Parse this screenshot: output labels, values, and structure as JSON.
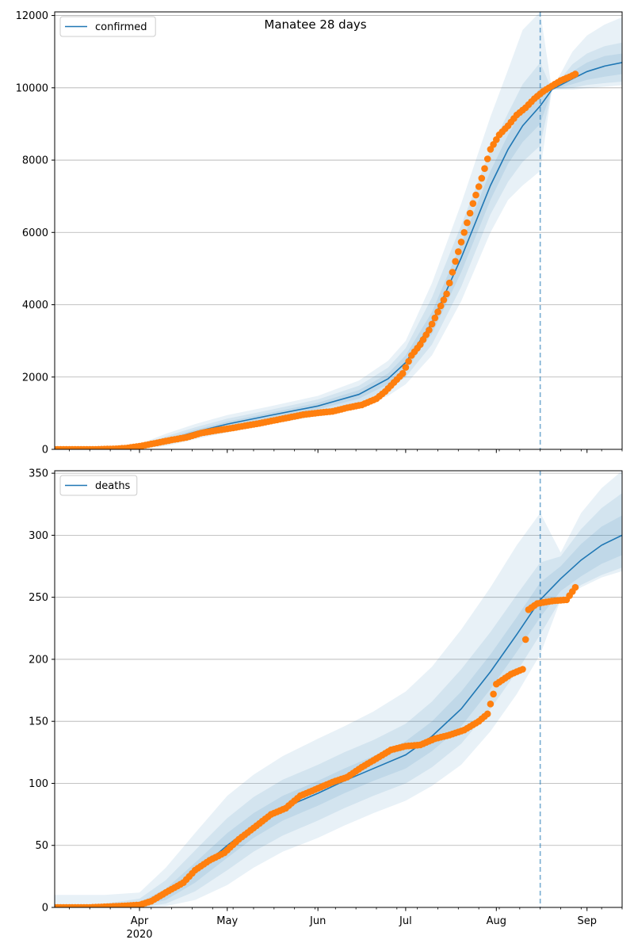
{
  "title": "Manatee 28 days",
  "colors": {
    "line": "#1f77b4",
    "points": "#ff7f0e",
    "band": "#1f77b4",
    "grid": "#b0b0b0",
    "vline": "#1f77b4"
  },
  "x_axis": {
    "major_ticks": [
      {
        "date": "2020-04-01",
        "label": "Apr",
        "sublabel": "2020"
      },
      {
        "date": "2020-05-01",
        "label": "May",
        "sublabel": ""
      },
      {
        "date": "2020-06-01",
        "label": "Jun",
        "sublabel": ""
      },
      {
        "date": "2020-07-01",
        "label": "Jul",
        "sublabel": ""
      },
      {
        "date": "2020-08-01",
        "label": "Aug",
        "sublabel": ""
      },
      {
        "date": "2020-09-01",
        "label": "Sep",
        "sublabel": ""
      }
    ],
    "xlim": [
      "2020-03-03",
      "2020-09-13"
    ],
    "minor_ticks": "weekly"
  },
  "chart_data": [
    {
      "type": "line",
      "legend": "confirmed",
      "legend_position": "top-left",
      "ylim": [
        0,
        12100
      ],
      "yticks": [
        0,
        2000,
        4000,
        6000,
        8000,
        10000,
        12000
      ],
      "grid": "horizontal",
      "forecast_start": "2020-08-16",
      "model": {
        "dates": [
          "2020-03-03",
          "2020-03-20",
          "2020-04-01",
          "2020-04-10",
          "2020-04-20",
          "2020-05-01",
          "2020-05-15",
          "2020-06-01",
          "2020-06-15",
          "2020-06-25",
          "2020-07-01",
          "2020-07-10",
          "2020-07-20",
          "2020-07-30",
          "2020-08-05",
          "2020-08-10",
          "2020-08-16",
          "2020-08-20",
          "2020-08-27",
          "2020-09-01",
          "2020-09-07",
          "2020-09-13"
        ],
        "mean": [
          0,
          5,
          60,
          250,
          480,
          700,
          930,
          1200,
          1520,
          1950,
          2400,
          3500,
          5300,
          7300,
          8300,
          8950,
          9500,
          9950,
          10250,
          10450,
          10600,
          10700
        ],
        "p25": [
          0,
          3,
          40,
          200,
          420,
          630,
          860,
          1110,
          1400,
          1800,
          2200,
          3200,
          4900,
          6900,
          7900,
          8500,
          9000,
          9950,
          10100,
          10220,
          10310,
          10380
        ],
        "p75": [
          0,
          8,
          80,
          300,
          540,
          770,
          1000,
          1290,
          1640,
          2100,
          2600,
          3800,
          5700,
          7700,
          8700,
          9400,
          10000,
          9950,
          10450,
          10700,
          10880,
          10950
        ],
        "p10": [
          0,
          2,
          25,
          150,
          360,
          560,
          790,
          1030,
          1300,
          1650,
          2000,
          2900,
          4500,
          6500,
          7400,
          7950,
          8400,
          9950,
          10000,
          10080,
          10130,
          10170
        ],
        "p90": [
          0,
          15,
          110,
          360,
          610,
          850,
          1080,
          1380,
          1760,
          2260,
          2800,
          4200,
          6200,
          8300,
          9300,
          10100,
          10700,
          9950,
          10650,
          10950,
          11150,
          11250
        ],
        "p025": [
          0,
          1,
          10,
          90,
          280,
          470,
          690,
          920,
          1170,
          1480,
          1800,
          2600,
          4100,
          6000,
          6900,
          7300,
          7700,
          9950,
          9950,
          9990,
          10030,
          10070
        ],
        "p975": [
          0,
          25,
          150,
          430,
          700,
          950,
          1180,
          1480,
          1900,
          2450,
          3000,
          4600,
          6800,
          9200,
          10500,
          11600,
          12100,
          9950,
          11000,
          11450,
          11750,
          11950
        ]
      },
      "observed": {
        "dates": [
          "2020-03-03",
          "2020-03-10",
          "2020-03-17",
          "2020-03-24",
          "2020-03-28",
          "2020-04-02",
          "2020-04-07",
          "2020-04-12",
          "2020-04-17",
          "2020-04-22",
          "2020-04-27",
          "2020-05-02",
          "2020-05-07",
          "2020-05-12",
          "2020-05-17",
          "2020-05-22",
          "2020-05-27",
          "2020-06-01",
          "2020-06-06",
          "2020-06-11",
          "2020-06-16",
          "2020-06-21",
          "2020-06-24",
          "2020-06-27",
          "2020-06-30",
          "2020-07-03",
          "2020-07-06",
          "2020-07-09",
          "2020-07-12",
          "2020-07-15",
          "2020-07-18",
          "2020-07-21",
          "2020-07-24",
          "2020-07-27",
          "2020-07-30",
          "2020-08-02",
          "2020-08-05",
          "2020-08-08",
          "2020-08-11",
          "2020-08-14",
          "2020-08-17",
          "2020-08-20",
          "2020-08-23",
          "2020-08-26",
          "2020-08-28"
        ],
        "values": [
          0,
          0,
          0,
          15,
          40,
          100,
          180,
          260,
          330,
          450,
          520,
          580,
          650,
          720,
          800,
          880,
          960,
          1010,
          1050,
          1150,
          1230,
          1400,
          1600,
          1850,
          2100,
          2600,
          2900,
          3300,
          3800,
          4300,
          5200,
          6000,
          6800,
          7500,
          8300,
          8700,
          8950,
          9250,
          9450,
          9700,
          9900,
          10050,
          10200,
          10300,
          10380
        ]
      }
    },
    {
      "type": "line",
      "legend": "deaths",
      "legend_position": "top-left",
      "ylim": [
        0,
        352
      ],
      "yticks": [
        0,
        50,
        100,
        150,
        200,
        250,
        300,
        350
      ],
      "grid": "horizontal",
      "forecast_start": "2020-08-16",
      "model": {
        "dates": [
          "2020-03-03",
          "2020-03-20",
          "2020-04-01",
          "2020-04-10",
          "2020-04-20",
          "2020-05-01",
          "2020-05-10",
          "2020-05-20",
          "2020-06-01",
          "2020-06-10",
          "2020-06-20",
          "2020-07-01",
          "2020-07-10",
          "2020-07-20",
          "2020-07-30",
          "2020-08-08",
          "2020-08-16",
          "2020-08-23",
          "2020-08-30",
          "2020-09-06",
          "2020-09-13"
        ],
        "mean": [
          0,
          0,
          2,
          10,
          28,
          50,
          66,
          80,
          92,
          102,
          112,
          123,
          138,
          160,
          190,
          220,
          248,
          265,
          280,
          292,
          300
        ],
        "p25": [
          0,
          0,
          1,
          6,
          20,
          40,
          56,
          70,
          82,
          92,
          102,
          112,
          126,
          146,
          176,
          206,
          234,
          255,
          267,
          277,
          284
        ],
        "p75": [
          0,
          1,
          4,
          15,
          36,
          60,
          76,
          90,
          102,
          112,
          122,
          134,
          150,
          174,
          204,
          234,
          262,
          275,
          293,
          307,
          316
        ],
        "p10": [
          0,
          0,
          0,
          3,
          13,
          30,
          45,
          58,
          70,
          80,
          90,
          100,
          113,
          132,
          160,
          190,
          220,
          248,
          260,
          268,
          274
        ],
        "p90": [
          0,
          3,
          7,
          22,
          46,
          72,
          89,
          103,
          115,
          125,
          135,
          148,
          166,
          192,
          222,
          252,
          278,
          283,
          305,
          322,
          334
        ],
        "p025": [
          0,
          0,
          0,
          1,
          6,
          18,
          32,
          45,
          56,
          66,
          76,
          86,
          98,
          115,
          142,
          172,
          204,
          248,
          258,
          266,
          271
        ],
        "p975": [
          10,
          10,
          12,
          32,
          60,
          90,
          107,
          122,
          136,
          146,
          158,
          174,
          194,
          224,
          258,
          292,
          318,
          286,
          318,
          338,
          352
        ]
      },
      "observed": {
        "dates": [
          "2020-03-03",
          "2020-03-15",
          "2020-03-25",
          "2020-04-01",
          "2020-04-05",
          "2020-04-10",
          "2020-04-16",
          "2020-04-20",
          "2020-04-25",
          "2020-04-30",
          "2020-05-05",
          "2020-05-10",
          "2020-05-16",
          "2020-05-21",
          "2020-05-26",
          "2020-06-01",
          "2020-06-06",
          "2020-06-11",
          "2020-06-16",
          "2020-06-21",
          "2020-06-26",
          "2020-07-01",
          "2020-07-06",
          "2020-07-11",
          "2020-07-16",
          "2020-07-21",
          "2020-07-26",
          "2020-07-29",
          "2020-08-01",
          "2020-08-06",
          "2020-08-10",
          "2020-08-12",
          "2020-08-15",
          "2020-08-20",
          "2020-08-25",
          "2020-08-28"
        ],
        "values": [
          0,
          0,
          1,
          2,
          5,
          12,
          20,
          30,
          38,
          44,
          55,
          64,
          75,
          80,
          90,
          96,
          101,
          105,
          113,
          120,
          127,
          130,
          131,
          136,
          139,
          143,
          150,
          156,
          180,
          188,
          192,
          240,
          245,
          247,
          248,
          258
        ]
      }
    }
  ]
}
